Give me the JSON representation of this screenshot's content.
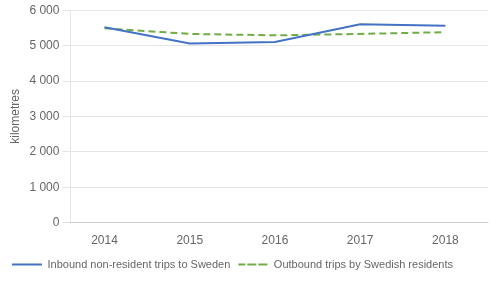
{
  "chart_data": {
    "type": "line",
    "x": [
      2014,
      2015,
      2016,
      2017,
      2018
    ],
    "xlim": [
      2013.6,
      2018.5
    ],
    "xticks": [
      2014,
      2015,
      2016,
      2017,
      2018
    ],
    "y_label": "kilometres",
    "ylim": [
      0,
      6000
    ],
    "yticks": [
      0,
      {
        "value": 1000,
        "label": "1 000"
      },
      {
        "value": 2000,
        "label": "2 000"
      },
      {
        "value": 3000,
        "label": "3 000"
      },
      {
        "value": 4000,
        "label": "4 000"
      },
      {
        "value": 5000,
        "label": "5 000"
      },
      {
        "value": 6000,
        "label": "6 000"
      }
    ],
    "grid": "y",
    "legend": "lower left",
    "series": [
      {
        "name": "Inbound non-resident trips to Sweden",
        "color": "#4472C4",
        "line_style": "solid",
        "values": [
          5520,
          5060,
          5100,
          5600,
          5560
        ]
      },
      {
        "name": "Outbound trips by Swedish residents",
        "color": "#70AD47",
        "line_style": "dashed",
        "values": [
          5490,
          5330,
          5290,
          5330,
          5380
        ]
      }
    ]
  }
}
